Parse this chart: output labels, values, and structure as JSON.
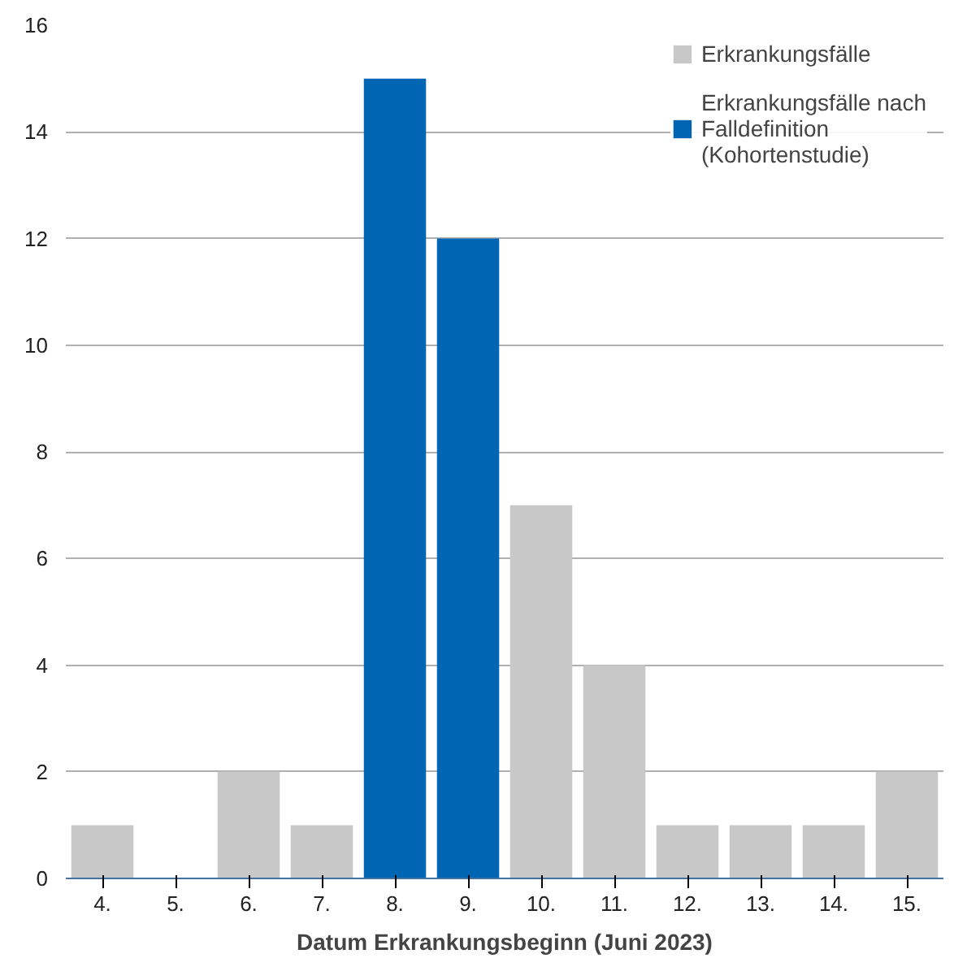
{
  "chart_data": {
    "type": "bar",
    "stacked": true,
    "xlabel": "Datum Erkrankungsbeginn (Juni 2023)",
    "categories": [
      "4.",
      "5.",
      "6.",
      "7.",
      "8.",
      "9.",
      "10.",
      "11.",
      "12.",
      "13.",
      "14.",
      "15."
    ],
    "series": [
      {
        "name": "Erkrankungsfälle",
        "color": "#c8c8c8",
        "values": [
          1,
          0,
          2,
          1,
          null,
          null,
          7,
          4,
          1,
          1,
          1,
          2
        ]
      },
      {
        "name": "Erkrankungsfälle nach Falldefinition (Kohortenstudie)",
        "color": "#0066b3",
        "values": [
          null,
          null,
          null,
          null,
          15,
          12,
          null,
          null,
          null,
          null,
          null,
          null
        ]
      }
    ],
    "ylim": [
      0,
      16
    ],
    "yticks": [
      0,
      2,
      4,
      6,
      8,
      10,
      12,
      14,
      16
    ],
    "grid": "y",
    "legend": "top right"
  }
}
